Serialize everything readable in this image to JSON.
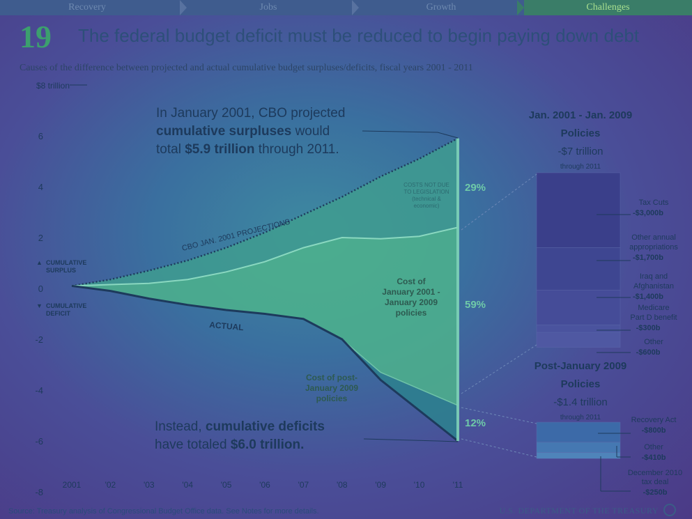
{
  "nav": {
    "tabs": [
      {
        "label": "Recovery",
        "active": false
      },
      {
        "label": "Jobs",
        "active": false
      },
      {
        "label": "Growth",
        "active": false
      },
      {
        "label": "Challenges",
        "active": true
      }
    ]
  },
  "page": {
    "number": "19",
    "title": "The federal budget deficit must be reduced to begin paying down debt",
    "subtitle": "Causes of the difference between projected and actual cumulative budget surpluses/deficits, fiscal years 2001 - 2011"
  },
  "footer": {
    "source": "Source: Treasury analysis of Congressional Budget Office data. See Notes for more details.",
    "department": "U.S. DEPARTMENT OF THE TREASURY"
  },
  "colors": {
    "surplus_band": "#3f9c8f",
    "policy_band": "#4db38c",
    "post_band": "#2e7f8f",
    "navy": "#1d3a5c",
    "pct": "#6fcaa8"
  },
  "chart_data": {
    "type": "area",
    "ylabel_top": "$8 trillion",
    "ylim": [
      -8,
      8
    ],
    "yticks": [
      {
        "value": 6,
        "label": "6"
      },
      {
        "value": 4,
        "label": "4"
      },
      {
        "value": 2,
        "label": "2"
      },
      {
        "value": 0,
        "label": "0"
      },
      {
        "value": -2,
        "label": "-2"
      },
      {
        "value": -4,
        "label": "-4"
      },
      {
        "value": -6,
        "label": "-6"
      },
      {
        "value": -8,
        "label": "-8"
      }
    ],
    "x": [
      2001,
      2002,
      2003,
      2004,
      2005,
      2006,
      2007,
      2008,
      2009,
      2010,
      2011
    ],
    "xtick_labels": [
      "2001",
      "'02",
      "'03",
      "'04",
      "'05",
      "'06",
      "'07",
      "'08",
      "'09",
      "'10",
      "'11"
    ],
    "series": [
      {
        "name": "CBO JAN. 2001 PROJECTIONS",
        "values": [
          0.1,
          0.35,
          0.7,
          1.1,
          1.6,
          2.2,
          2.9,
          3.6,
          4.4,
          5.1,
          5.9
        ]
      },
      {
        "name": "",
        "values": [
          0.1,
          0.15,
          0.2,
          0.35,
          0.65,
          1.05,
          1.6,
          2.0,
          1.95,
          2.05,
          2.4
        ]
      },
      {
        "name": "",
        "values": [
          0.1,
          -0.1,
          -0.4,
          -0.65,
          -0.85,
          -1.0,
          -1.2,
          -2.0,
          -3.3,
          -3.95,
          -4.6
        ]
      },
      {
        "name": "ACTUAL",
        "values": [
          0.1,
          -0.1,
          -0.4,
          -0.65,
          -0.85,
          -1.0,
          -1.2,
          -2.0,
          -3.6,
          -4.8,
          -6.0
        ]
      }
    ],
    "legend": [
      {
        "symbol": "▲",
        "label_line1": "CUMULATIVE",
        "label_line2": "SURPLUS"
      },
      {
        "symbol": "▼",
        "label_line1": "CUMULATIVE",
        "label_line2": "DEFICIT"
      }
    ],
    "bands": [
      {
        "label_lines": [
          "COSTS NOT DUE",
          "TO LEGISLATION",
          "(technical &",
          "economic)"
        ],
        "percent": "29%"
      },
      {
        "label_lines": [
          "Cost of",
          "January 2001 -",
          "January 2009",
          "policies"
        ],
        "percent": "59%"
      },
      {
        "label_lines": [
          "Cost of post-",
          "January 2009",
          "policies"
        ],
        "percent": "12%"
      }
    ],
    "annotations": {
      "projected": {
        "line1": "In January 2001, CBO projected",
        "line2_bold": "cumulative surpluses",
        "line2_rest": " would",
        "line3_pre": "total ",
        "line3_bold": "$5.9 trillion",
        "line3_rest": " through 2011."
      },
      "actual": {
        "line1_pre": "Instead, ",
        "line1_bold": "cumulative deficits",
        "line2_pre": "have totaled ",
        "line2_bold": "$6.0 trillion."
      }
    },
    "breakdowns": [
      {
        "title_line1": "Jan. 2001 - Jan. 2009",
        "title_line2": "Policies",
        "total": "-$7 trillion",
        "through": "through 2011",
        "items": [
          {
            "label_lines": [
              "Tax Cuts"
            ],
            "value": "-$3,000b",
            "amount": 3000
          },
          {
            "label_lines": [
              "Other annual",
              "appropriations"
            ],
            "value": "-$1,700b",
            "amount": 1700
          },
          {
            "label_lines": [
              "Iraq and",
              "Afghanistan"
            ],
            "value": "-$1,400b",
            "amount": 1400
          },
          {
            "label_lines": [
              "Medicare",
              "Part D benefit"
            ],
            "value": "-$300b",
            "amount": 300
          },
          {
            "label_lines": [
              "Other"
            ],
            "value": "-$600b",
            "amount": 600
          }
        ]
      },
      {
        "title_line1": "Post-January 2009",
        "title_line2": "Policies",
        "total": "-$1.4 trillion",
        "through": "through 2011",
        "items": [
          {
            "label_lines": [
              "Recovery Act"
            ],
            "value": "-$800b",
            "amount": 800
          },
          {
            "label_lines": [
              "Other"
            ],
            "value": "-$410b",
            "amount": 410
          },
          {
            "label_lines": [
              "December 2010",
              "tax deal"
            ],
            "value": "-$250b",
            "amount": 250
          }
        ]
      }
    ]
  }
}
